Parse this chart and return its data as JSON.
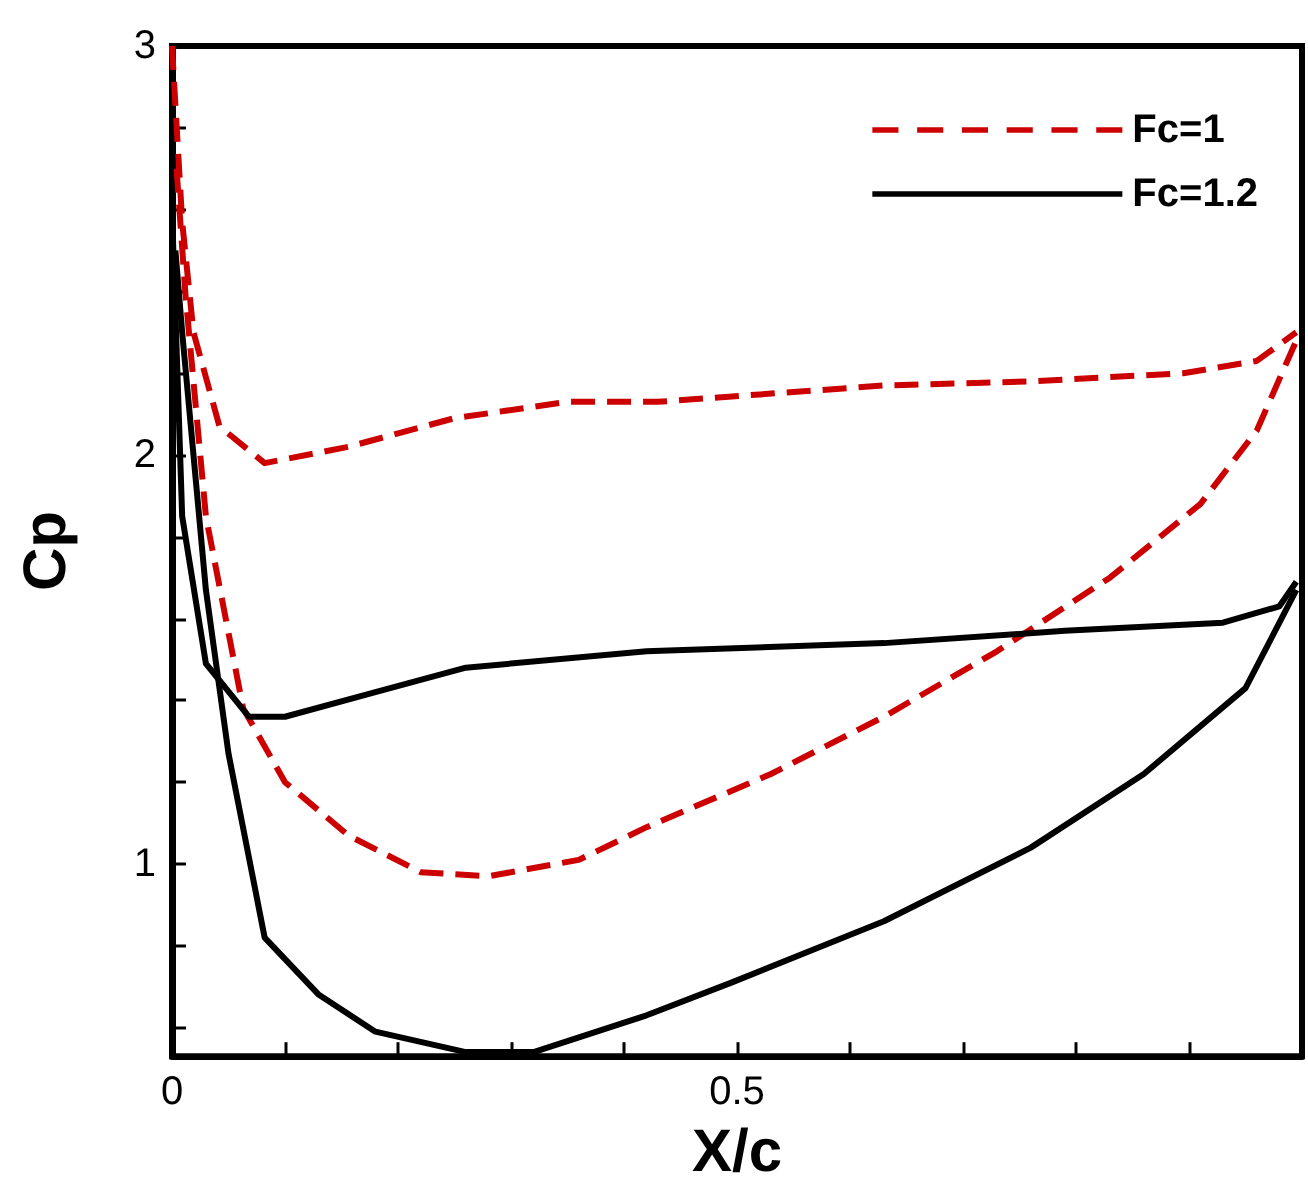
{
  "chart_data": {
    "type": "line",
    "xlabel": "X/c",
    "ylabel": "Cp",
    "xlim": [
      0,
      1
    ],
    "ylim": [
      0.53,
      3
    ],
    "xticks": [
      0,
      {
        "value": 0.1,
        "label": null
      },
      {
        "value": 0.2,
        "label": null
      },
      {
        "value": 0.3,
        "label": null
      },
      {
        "value": 0.4,
        "label": null
      },
      0.5,
      {
        "value": 0.6,
        "label": null
      },
      {
        "value": 0.7,
        "label": null
      },
      {
        "value": 0.8,
        "label": null
      },
      {
        "value": 0.9,
        "label": null
      },
      {
        "value": 1,
        "label": null
      }
    ],
    "yticks": [
      {
        "value": 0.6,
        "label": null
      },
      {
        "value": 0.8,
        "label": null
      },
      1,
      {
        "value": 1.2,
        "label": null
      },
      {
        "value": 1.4,
        "label": null
      },
      {
        "value": 1.6,
        "label": null
      },
      {
        "value": 1.8,
        "label": null
      },
      2,
      {
        "value": 2.2,
        "label": null
      },
      {
        "value": 2.4,
        "label": null
      },
      {
        "value": 2.6,
        "label": null
      },
      {
        "value": 2.8,
        "label": null
      },
      3
    ],
    "grid": false,
    "legend": "top right",
    "marker": "none",
    "series": [
      {
        "name": "Fc=1",
        "color": "#cc0000",
        "line_style": "dashed",
        "x": [
          0,
          0.009,
          0.019,
          0.042,
          0.082,
          0.156,
          0.25,
          0.35,
          0.43,
          0.63,
          0.76,
          0.895,
          0.96,
          0.995
        ],
        "values": [
          3,
          2.57,
          2.3,
          2.07,
          1.98,
          2.02,
          2.09,
          2.13,
          2.13,
          2.17,
          2.18,
          2.2,
          2.23,
          2.3
        ]
      },
      {
        "color": "#cc0000",
        "line_style": "dashed",
        "x": [
          0.004,
          0.012,
          0.03,
          0.063,
          0.1,
          0.156,
          0.22,
          0.28,
          0.36,
          0.42,
          0.53,
          0.63,
          0.73,
          0.83,
          0.91,
          0.96,
          0.995
        ],
        "values": [
          2.7,
          2.39,
          1.85,
          1.38,
          1.2,
          1.07,
          0.98,
          0.97,
          1.01,
          1.09,
          1.22,
          1.36,
          1.52,
          1.7,
          1.88,
          2.06,
          2.28
        ]
      },
      {
        "name": "Fc=1.2",
        "color": "#000000",
        "line_style": "solid",
        "x": [
          0,
          0.009,
          0.03,
          0.068,
          0.1,
          0.18,
          0.26,
          0.42,
          0.63,
          0.79,
          0.93,
          0.98,
          0.995
        ],
        "values": [
          2.6,
          1.85,
          1.49,
          1.36,
          1.36,
          1.42,
          1.48,
          1.52,
          1.54,
          1.57,
          1.59,
          1.63,
          1.69
        ]
      },
      {
        "color": "#000000",
        "line_style": "solid",
        "x": [
          0.003,
          0.009,
          0.03,
          0.05,
          0.082,
          0.13,
          0.18,
          0.26,
          0.32,
          0.42,
          0.495,
          0.63,
          0.76,
          0.86,
          0.95,
          0.995
        ],
        "values": [
          2.5,
          2.3,
          1.67,
          1.27,
          0.82,
          0.68,
          0.59,
          0.54,
          0.54,
          0.63,
          0.71,
          0.86,
          1.04,
          1.22,
          1.43,
          1.67
        ]
      }
    ]
  }
}
